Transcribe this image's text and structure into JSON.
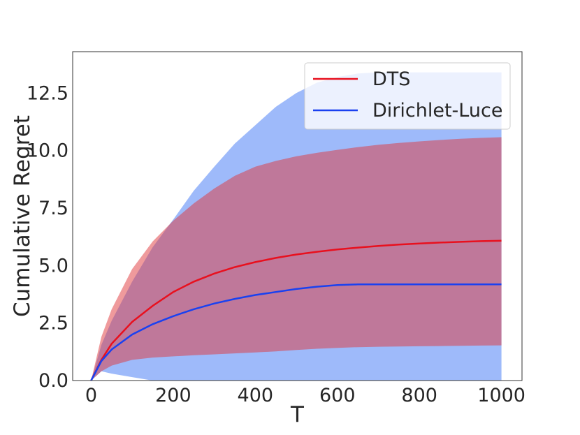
{
  "chart_data": {
    "type": "line",
    "title": "",
    "xlabel": "T",
    "ylabel": "Cumulative Regret",
    "xlim": [
      -45,
      1050
    ],
    "ylim": [
      0,
      14.3
    ],
    "xticks": [
      0,
      200,
      400,
      600,
      800,
      1000
    ],
    "xtick_labels": [
      "0",
      "200",
      "400",
      "600",
      "800",
      "1000"
    ],
    "yticks": [
      0,
      2.5,
      5,
      7.5,
      10,
      12.5
    ],
    "ytick_labels": [
      "0.0",
      "2.5",
      "5.0",
      "7.5",
      "10.0",
      "12.5"
    ],
    "grid": false,
    "legend_position": "top-right",
    "x": [
      0,
      25,
      50,
      100,
      150,
      200,
      250,
      300,
      350,
      400,
      450,
      500,
      550,
      600,
      650,
      700,
      750,
      800,
      850,
      900,
      950,
      1000
    ],
    "series": [
      {
        "name": "DTS",
        "color": "#e8101e",
        "band_color": "#f08080",
        "mean": [
          0,
          0.9,
          1.6,
          2.55,
          3.25,
          3.85,
          4.3,
          4.65,
          4.93,
          5.15,
          5.33,
          5.48,
          5.6,
          5.7,
          5.78,
          5.85,
          5.91,
          5.96,
          6.0,
          6.03,
          6.06,
          6.08
        ],
        "upper": [
          0,
          1.9,
          3.1,
          4.85,
          6.05,
          6.95,
          7.7,
          8.35,
          8.9,
          9.3,
          9.55,
          9.75,
          9.9,
          10.03,
          10.15,
          10.25,
          10.33,
          10.4,
          10.46,
          10.51,
          10.55,
          10.58
        ],
        "lower": [
          0,
          0.4,
          0.65,
          0.9,
          1.0,
          1.05,
          1.1,
          1.14,
          1.18,
          1.22,
          1.27,
          1.33,
          1.38,
          1.42,
          1.45,
          1.47,
          1.48,
          1.49,
          1.5,
          1.51,
          1.52,
          1.53
        ]
      },
      {
        "name": "Dirichlet-Luce",
        "color": "#1a41f0",
        "band_color": "#7ea3f8",
        "mean": [
          0,
          0.85,
          1.35,
          2.0,
          2.45,
          2.8,
          3.1,
          3.35,
          3.55,
          3.72,
          3.85,
          3.98,
          4.08,
          4.15,
          4.18,
          4.18,
          4.18,
          4.18,
          4.18,
          4.18,
          4.18,
          4.18
        ],
        "upper": [
          0,
          1.55,
          2.6,
          4.3,
          5.8,
          7.0,
          8.25,
          9.3,
          10.3,
          11.1,
          11.9,
          12.5,
          12.95,
          13.2,
          13.35,
          13.4,
          13.4,
          13.4,
          13.4,
          13.4,
          13.4,
          13.4
        ],
        "lower": [
          0,
          0.4,
          0.3,
          0.15,
          0,
          0,
          0,
          0,
          0,
          0,
          0,
          0,
          0,
          0,
          0,
          0,
          0,
          0,
          0,
          0,
          0,
          0
        ]
      }
    ]
  }
}
